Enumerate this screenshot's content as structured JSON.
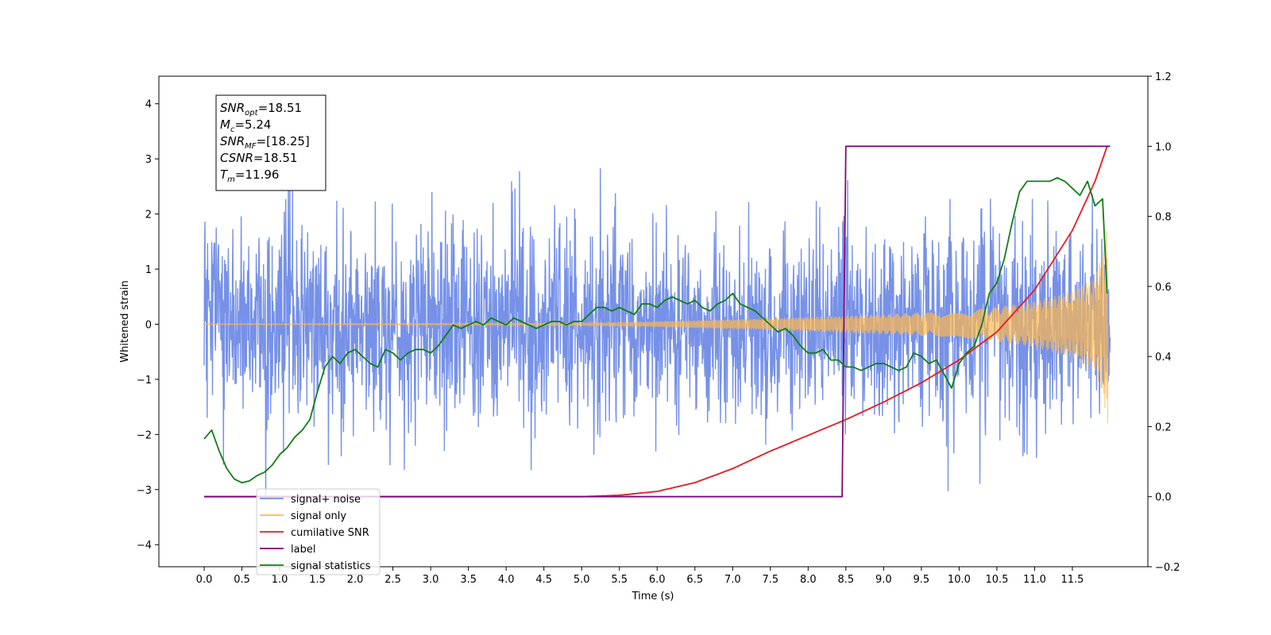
{
  "chart_data": {
    "type": "line",
    "title": "",
    "xlabel": "Time (s)",
    "ylabel": "Whitened strain",
    "xlim": [
      -0.6,
      12.5
    ],
    "ylim": [
      -4.4,
      4.5
    ],
    "y2lim": [
      -0.2,
      1.2
    ],
    "x_ticks": [
      0.0,
      0.5,
      1.0,
      1.5,
      2.0,
      2.5,
      3.0,
      3.5,
      4.0,
      4.5,
      5.0,
      5.5,
      6.0,
      6.5,
      7.0,
      7.5,
      8.0,
      8.5,
      9.0,
      9.5,
      10.0,
      10.5,
      11.0,
      11.5
    ],
    "x_tick_labels": [
      "0.0",
      "0.5",
      "1.0",
      "1.5",
      "2.0",
      "2.5",
      "3.0",
      "3.5",
      "4.0",
      "4.5",
      "5.0",
      "5.5",
      "6.0",
      "6.5",
      "7.0",
      "7.5",
      "8.0",
      "8.5",
      "9.0",
      "9.5",
      "10.0",
      "10.5",
      "11.0",
      "11.5"
    ],
    "y_ticks": [
      -4,
      -3,
      -2,
      -1,
      0,
      1,
      2,
      3,
      4
    ],
    "y_tick_labels": [
      "−4",
      "−3",
      "−2",
      "−1",
      "0",
      "1",
      "2",
      "3",
      "4"
    ],
    "y2_ticks": [
      -0.2,
      0.0,
      0.2,
      0.4,
      0.6,
      0.8,
      1.0,
      1.2
    ],
    "y2_tick_labels": [
      "−0.2",
      "0.0",
      "0.2",
      "0.4",
      "0.6",
      "0.8",
      "1.0",
      "1.2"
    ],
    "grid": false,
    "legend_position": "lower-left",
    "annotation": {
      "lines": [
        {
          "base": "SNR",
          "sub": "opt",
          "value": "=18.51"
        },
        {
          "base": "M",
          "sub": "c",
          "value": "=5.24"
        },
        {
          "base": "SNR",
          "sub": "MF",
          "value": "=[18.25]"
        },
        {
          "base": "CSNR",
          "sub": "",
          "value": "=18.51"
        },
        {
          "base": "T",
          "sub": "m",
          "value": "=11.96"
        }
      ]
    },
    "series": [
      {
        "name": "signal+ noise",
        "axis": "left",
        "color": "#6f8be6",
        "noise_std": 0.95,
        "noise_max_abs": 3.8,
        "x_range": [
          0.0,
          12.0
        ]
      },
      {
        "name": "signal only",
        "axis": "left",
        "color": "#ffb84d",
        "envelope": {
          "x": [
            0.0,
            5.0,
            6.0,
            7.0,
            8.0,
            9.0,
            10.0,
            10.5,
            11.0,
            11.5,
            11.8,
            11.9,
            11.96
          ],
          "amp": [
            0.01,
            0.02,
            0.05,
            0.09,
            0.13,
            0.18,
            0.24,
            0.31,
            0.42,
            0.6,
            0.85,
            1.3,
            1.8
          ]
        },
        "x_range": [
          0.0,
          12.0
        ]
      },
      {
        "name": "cumilative SNR",
        "axis": "right",
        "color": "#e8191e",
        "x": [
          0.0,
          5.0,
          5.5,
          6.0,
          6.5,
          7.0,
          7.5,
          8.0,
          8.5,
          9.0,
          9.5,
          10.0,
          10.5,
          11.0,
          11.5,
          11.8,
          11.96,
          12.0
        ],
        "values": [
          0.0,
          0.0,
          0.004,
          0.015,
          0.04,
          0.08,
          0.13,
          0.175,
          0.22,
          0.27,
          0.325,
          0.39,
          0.47,
          0.59,
          0.76,
          0.9,
          1.0,
          1.0
        ]
      },
      {
        "name": "label",
        "axis": "right",
        "color": "#7a0a7a",
        "x": [
          0.0,
          8.45,
          8.5,
          12.0
        ],
        "values": [
          0.0,
          0.0,
          1.0,
          1.0
        ]
      },
      {
        "name": "signal statistics",
        "axis": "right",
        "color": "#137d13",
        "x": [
          0.0,
          0.1,
          0.2,
          0.3,
          0.4,
          0.5,
          0.6,
          0.7,
          0.8,
          0.9,
          1.0,
          1.1,
          1.2,
          1.3,
          1.4,
          1.5,
          1.6,
          1.7,
          1.8,
          1.9,
          2.0,
          2.1,
          2.2,
          2.3,
          2.4,
          2.5,
          2.6,
          2.7,
          2.8,
          2.9,
          3.0,
          3.1,
          3.2,
          3.3,
          3.4,
          3.5,
          3.6,
          3.7,
          3.8,
          3.9,
          4.0,
          4.1,
          4.2,
          4.3,
          4.4,
          4.5,
          4.6,
          4.7,
          4.8,
          4.9,
          5.0,
          5.1,
          5.2,
          5.3,
          5.4,
          5.5,
          5.6,
          5.7,
          5.8,
          5.9,
          6.0,
          6.1,
          6.2,
          6.3,
          6.4,
          6.5,
          6.6,
          6.7,
          6.8,
          6.9,
          7.0,
          7.1,
          7.2,
          7.3,
          7.4,
          7.5,
          7.6,
          7.7,
          7.8,
          7.9,
          8.0,
          8.1,
          8.2,
          8.3,
          8.4,
          8.5,
          8.6,
          8.7,
          8.8,
          8.9,
          9.0,
          9.1,
          9.2,
          9.3,
          9.4,
          9.5,
          9.6,
          9.7,
          9.8,
          9.9,
          10.0,
          10.1,
          10.2,
          10.3,
          10.4,
          10.5,
          10.6,
          10.7,
          10.8,
          10.9,
          11.0,
          11.1,
          11.2,
          11.3,
          11.4,
          11.5,
          11.6,
          11.7,
          11.8,
          11.9,
          11.96
        ],
        "values": [
          0.165,
          0.19,
          0.13,
          0.08,
          0.05,
          0.04,
          0.045,
          0.06,
          0.07,
          0.09,
          0.12,
          0.14,
          0.17,
          0.19,
          0.22,
          0.3,
          0.37,
          0.4,
          0.38,
          0.41,
          0.42,
          0.4,
          0.38,
          0.37,
          0.42,
          0.41,
          0.39,
          0.41,
          0.42,
          0.42,
          0.41,
          0.43,
          0.46,
          0.49,
          0.48,
          0.49,
          0.5,
          0.49,
          0.51,
          0.5,
          0.49,
          0.51,
          0.5,
          0.49,
          0.48,
          0.49,
          0.5,
          0.5,
          0.49,
          0.5,
          0.5,
          0.52,
          0.54,
          0.54,
          0.53,
          0.54,
          0.53,
          0.52,
          0.55,
          0.55,
          0.54,
          0.56,
          0.57,
          0.56,
          0.55,
          0.56,
          0.54,
          0.53,
          0.55,
          0.56,
          0.58,
          0.55,
          0.54,
          0.53,
          0.51,
          0.49,
          0.47,
          0.48,
          0.46,
          0.43,
          0.41,
          0.41,
          0.42,
          0.39,
          0.39,
          0.37,
          0.37,
          0.36,
          0.37,
          0.38,
          0.38,
          0.37,
          0.36,
          0.37,
          0.41,
          0.4,
          0.38,
          0.39,
          0.35,
          0.31,
          0.38,
          0.41,
          0.43,
          0.49,
          0.58,
          0.61,
          0.68,
          0.78,
          0.87,
          0.9,
          0.9,
          0.9,
          0.9,
          0.91,
          0.9,
          0.88,
          0.86,
          0.9,
          0.83,
          0.85,
          0.58
        ]
      }
    ]
  }
}
